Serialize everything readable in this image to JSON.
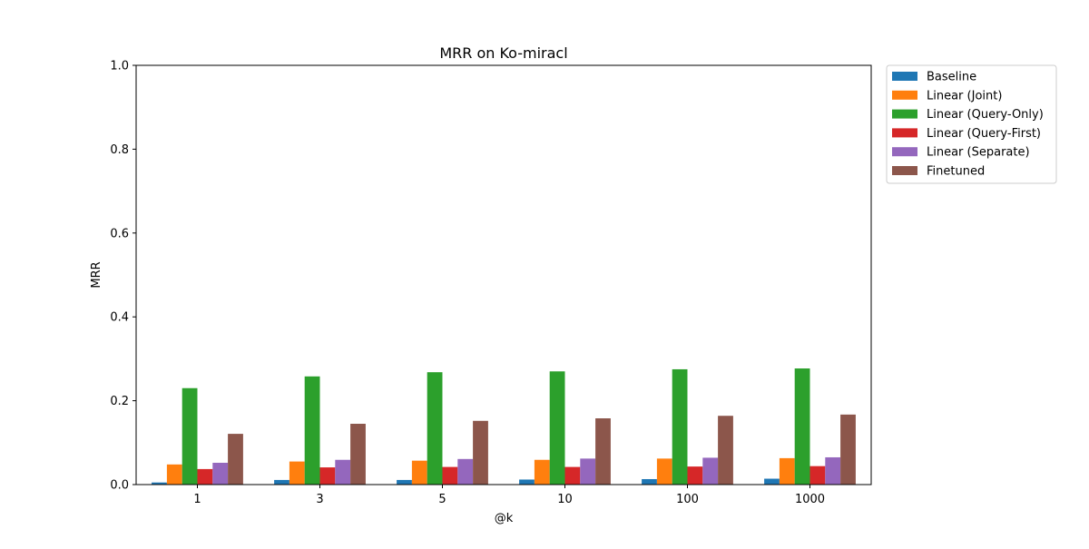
{
  "chart_data": {
    "type": "bar",
    "title": "MRR on Ko-miracl",
    "xlabel": "@k",
    "ylabel": "MRR",
    "ylim": [
      0,
      1.0
    ],
    "yticks": [
      "0.0",
      "0.2",
      "0.4",
      "0.6",
      "0.8",
      "1.0"
    ],
    "categories": [
      "1",
      "3",
      "5",
      "10",
      "100",
      "1000"
    ],
    "grid": false,
    "legend_position": "outside-top-right",
    "series": [
      {
        "name": "Baseline",
        "color": "#1f77b4",
        "values": [
          0.005,
          0.011,
          0.011,
          0.012,
          0.013,
          0.014
        ]
      },
      {
        "name": "Linear (Joint)",
        "color": "#ff7f0e",
        "values": [
          0.048,
          0.055,
          0.057,
          0.059,
          0.062,
          0.063
        ]
      },
      {
        "name": "Linear (Query-Only)",
        "color": "#2ca02c",
        "values": [
          0.23,
          0.258,
          0.268,
          0.27,
          0.275,
          0.277
        ]
      },
      {
        "name": "Linear (Query-First)",
        "color": "#d62728",
        "values": [
          0.037,
          0.041,
          0.042,
          0.042,
          0.043,
          0.044
        ]
      },
      {
        "name": "Linear (Separate)",
        "color": "#9467bd",
        "values": [
          0.052,
          0.059,
          0.061,
          0.062,
          0.064,
          0.065
        ]
      },
      {
        "name": "Finetuned",
        "color": "#8c564b",
        "values": [
          0.121,
          0.145,
          0.152,
          0.158,
          0.164,
          0.167
        ]
      }
    ]
  }
}
